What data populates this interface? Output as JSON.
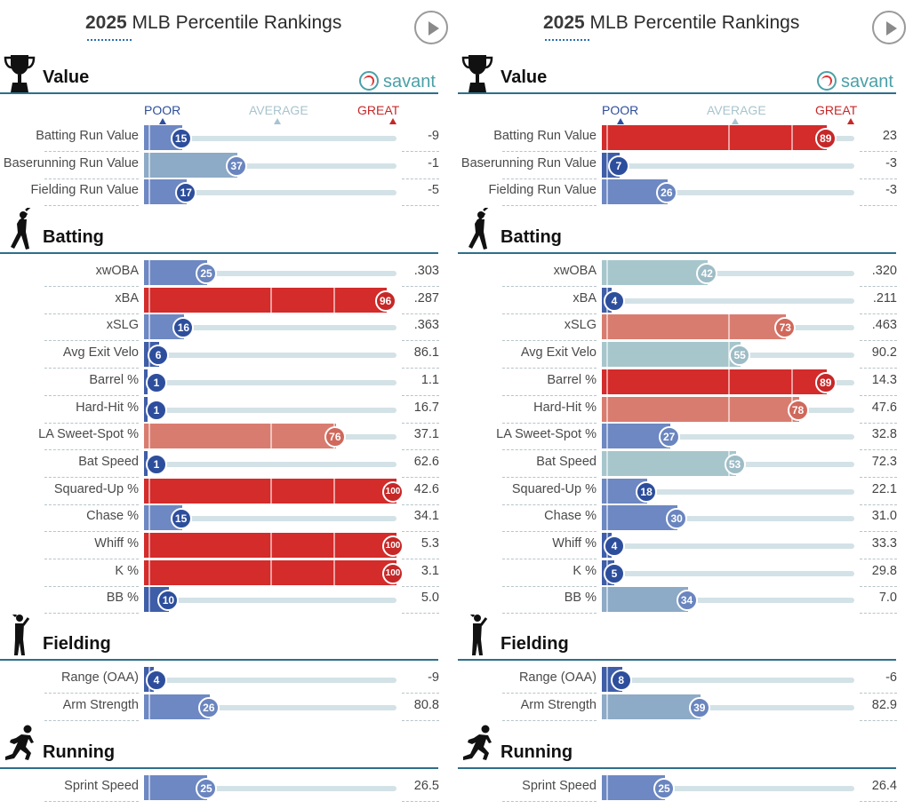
{
  "panels": [
    {
      "title_year": "2025",
      "title_rest": " MLB Percentile Rankings",
      "brand": "savant",
      "scale": {
        "poor": "POOR",
        "average": "AVERAGE",
        "great": "GREAT"
      },
      "sections": [
        {
          "title": "Value",
          "icon": "trophy-icon",
          "metrics": [
            {
              "label": "Batting Run Value",
              "pct": 15,
              "value": "-9"
            },
            {
              "label": "Baserunning Run Value",
              "pct": 37,
              "value": "-1"
            },
            {
              "label": "Fielding Run Value",
              "pct": 17,
              "value": "-5"
            }
          ]
        },
        {
          "title": "Batting",
          "icon": "batter-icon",
          "metrics": [
            {
              "label": "xwOBA",
              "pct": 25,
              "value": ".303"
            },
            {
              "label": "xBA",
              "pct": 96,
              "value": ".287"
            },
            {
              "label": "xSLG",
              "pct": 16,
              "value": ".363"
            },
            {
              "label": "Avg Exit Velo",
              "pct": 6,
              "value": "86.1"
            },
            {
              "label": "Barrel %",
              "pct": 1,
              "value": "1.1"
            },
            {
              "label": "Hard-Hit %",
              "pct": 1,
              "value": "16.7"
            },
            {
              "label": "LA Sweet-Spot %",
              "pct": 76,
              "value": "37.1"
            },
            {
              "label": "Bat Speed",
              "pct": 1,
              "value": "62.6"
            },
            {
              "label": "Squared-Up %",
              "pct": 100,
              "value": "42.6"
            },
            {
              "label": "Chase %",
              "pct": 15,
              "value": "34.1"
            },
            {
              "label": "Whiff %",
              "pct": 100,
              "value": "5.3"
            },
            {
              "label": "K %",
              "pct": 100,
              "value": "3.1"
            },
            {
              "label": "BB %",
              "pct": 10,
              "value": "5.0"
            }
          ]
        },
        {
          "title": "Fielding",
          "icon": "fielder-icon",
          "metrics": [
            {
              "label": "Range (OAA)",
              "pct": 4,
              "value": "-9"
            },
            {
              "label": "Arm Strength",
              "pct": 26,
              "value": "80.8"
            }
          ]
        },
        {
          "title": "Running",
          "icon": "runner-icon",
          "metrics": [
            {
              "label": "Sprint Speed",
              "pct": 25,
              "value": "26.5"
            }
          ]
        }
      ]
    },
    {
      "title_year": "2025",
      "title_rest": " MLB Percentile Rankings",
      "brand": "savant",
      "scale": {
        "poor": "POOR",
        "average": "AVERAGE",
        "great": "GREAT"
      },
      "sections": [
        {
          "title": "Value",
          "icon": "trophy-icon",
          "metrics": [
            {
              "label": "Batting Run Value",
              "pct": 89,
              "value": "23"
            },
            {
              "label": "Baserunning Run Value",
              "pct": 7,
              "value": "-3"
            },
            {
              "label": "Fielding Run Value",
              "pct": 26,
              "value": "-3"
            }
          ]
        },
        {
          "title": "Batting",
          "icon": "batter-icon",
          "metrics": [
            {
              "label": "xwOBA",
              "pct": 42,
              "value": ".320"
            },
            {
              "label": "xBA",
              "pct": 4,
              "value": ".211"
            },
            {
              "label": "xSLG",
              "pct": 73,
              "value": ".463"
            },
            {
              "label": "Avg Exit Velo",
              "pct": 55,
              "value": "90.2"
            },
            {
              "label": "Barrel %",
              "pct": 89,
              "value": "14.3"
            },
            {
              "label": "Hard-Hit %",
              "pct": 78,
              "value": "47.6"
            },
            {
              "label": "LA Sweet-Spot %",
              "pct": 27,
              "value": "32.8"
            },
            {
              "label": "Bat Speed",
              "pct": 53,
              "value": "72.3"
            },
            {
              "label": "Squared-Up %",
              "pct": 18,
              "value": "22.1"
            },
            {
              "label": "Chase %",
              "pct": 30,
              "value": "31.0"
            },
            {
              "label": "Whiff %",
              "pct": 4,
              "value": "33.3"
            },
            {
              "label": "K %",
              "pct": 5,
              "value": "29.8"
            },
            {
              "label": "BB %",
              "pct": 34,
              "value": "7.0"
            }
          ]
        },
        {
          "title": "Fielding",
          "icon": "fielder-icon",
          "metrics": [
            {
              "label": "Range (OAA)",
              "pct": 8,
              "value": "-6"
            },
            {
              "label": "Arm Strength",
              "pct": 39,
              "value": "82.9"
            }
          ]
        },
        {
          "title": "Running",
          "icon": "runner-icon",
          "metrics": [
            {
              "label": "Sprint Speed",
              "pct": 25,
              "value": "26.4"
            }
          ]
        }
      ]
    }
  ],
  "chart_data": [
    {
      "type": "bar",
      "title": "2025 MLB Percentile Rankings",
      "xlim": [
        0,
        100
      ],
      "categories": [
        "Batting Run Value",
        "Baserunning Run Value",
        "Fielding Run Value",
        "xwOBA",
        "xBA",
        "xSLG",
        "Avg Exit Velo",
        "Barrel %",
        "Hard-Hit %",
        "LA Sweet-Spot %",
        "Bat Speed",
        "Squared-Up %",
        "Chase %",
        "Whiff %",
        "K %",
        "BB %",
        "Range (OAA)",
        "Arm Strength",
        "Sprint Speed"
      ],
      "values": [
        15,
        37,
        17,
        25,
        96,
        16,
        6,
        1,
        1,
        76,
        1,
        100,
        15,
        100,
        100,
        10,
        4,
        26,
        25
      ],
      "stat_values": [
        "-9",
        "-1",
        "-5",
        ".303",
        ".287",
        ".363",
        "86.1",
        "1.1",
        "16.7",
        "37.1",
        "62.6",
        "42.6",
        "34.1",
        "5.3",
        "3.1",
        "5.0",
        "-9",
        "80.8",
        "26.5"
      ]
    },
    {
      "type": "bar",
      "title": "2025 MLB Percentile Rankings",
      "xlim": [
        0,
        100
      ],
      "categories": [
        "Batting Run Value",
        "Baserunning Run Value",
        "Fielding Run Value",
        "xwOBA",
        "xBA",
        "xSLG",
        "Avg Exit Velo",
        "Barrel %",
        "Hard-Hit %",
        "LA Sweet-Spot %",
        "Bat Speed",
        "Squared-Up %",
        "Chase %",
        "Whiff %",
        "K %",
        "BB %",
        "Range (OAA)",
        "Arm Strength",
        "Sprint Speed"
      ],
      "values": [
        89,
        7,
        26,
        42,
        4,
        73,
        55,
        89,
        78,
        27,
        53,
        18,
        30,
        4,
        5,
        34,
        8,
        39,
        25
      ],
      "stat_values": [
        "23",
        "-3",
        "-3",
        ".320",
        ".211",
        ".463",
        "90.2",
        "14.3",
        "47.6",
        "32.8",
        "72.3",
        "22.1",
        "31.0",
        "33.3",
        "29.8",
        "7.0",
        "-6",
        "82.9",
        "26.4"
      ]
    }
  ],
  "colors": {
    "section_line": "#2f6f89",
    "poor": "#2d4e9c",
    "average": "#a8c4ce",
    "great": "#c62828",
    "track": "#d3e2e6",
    "savant": "#4aa0a8"
  }
}
